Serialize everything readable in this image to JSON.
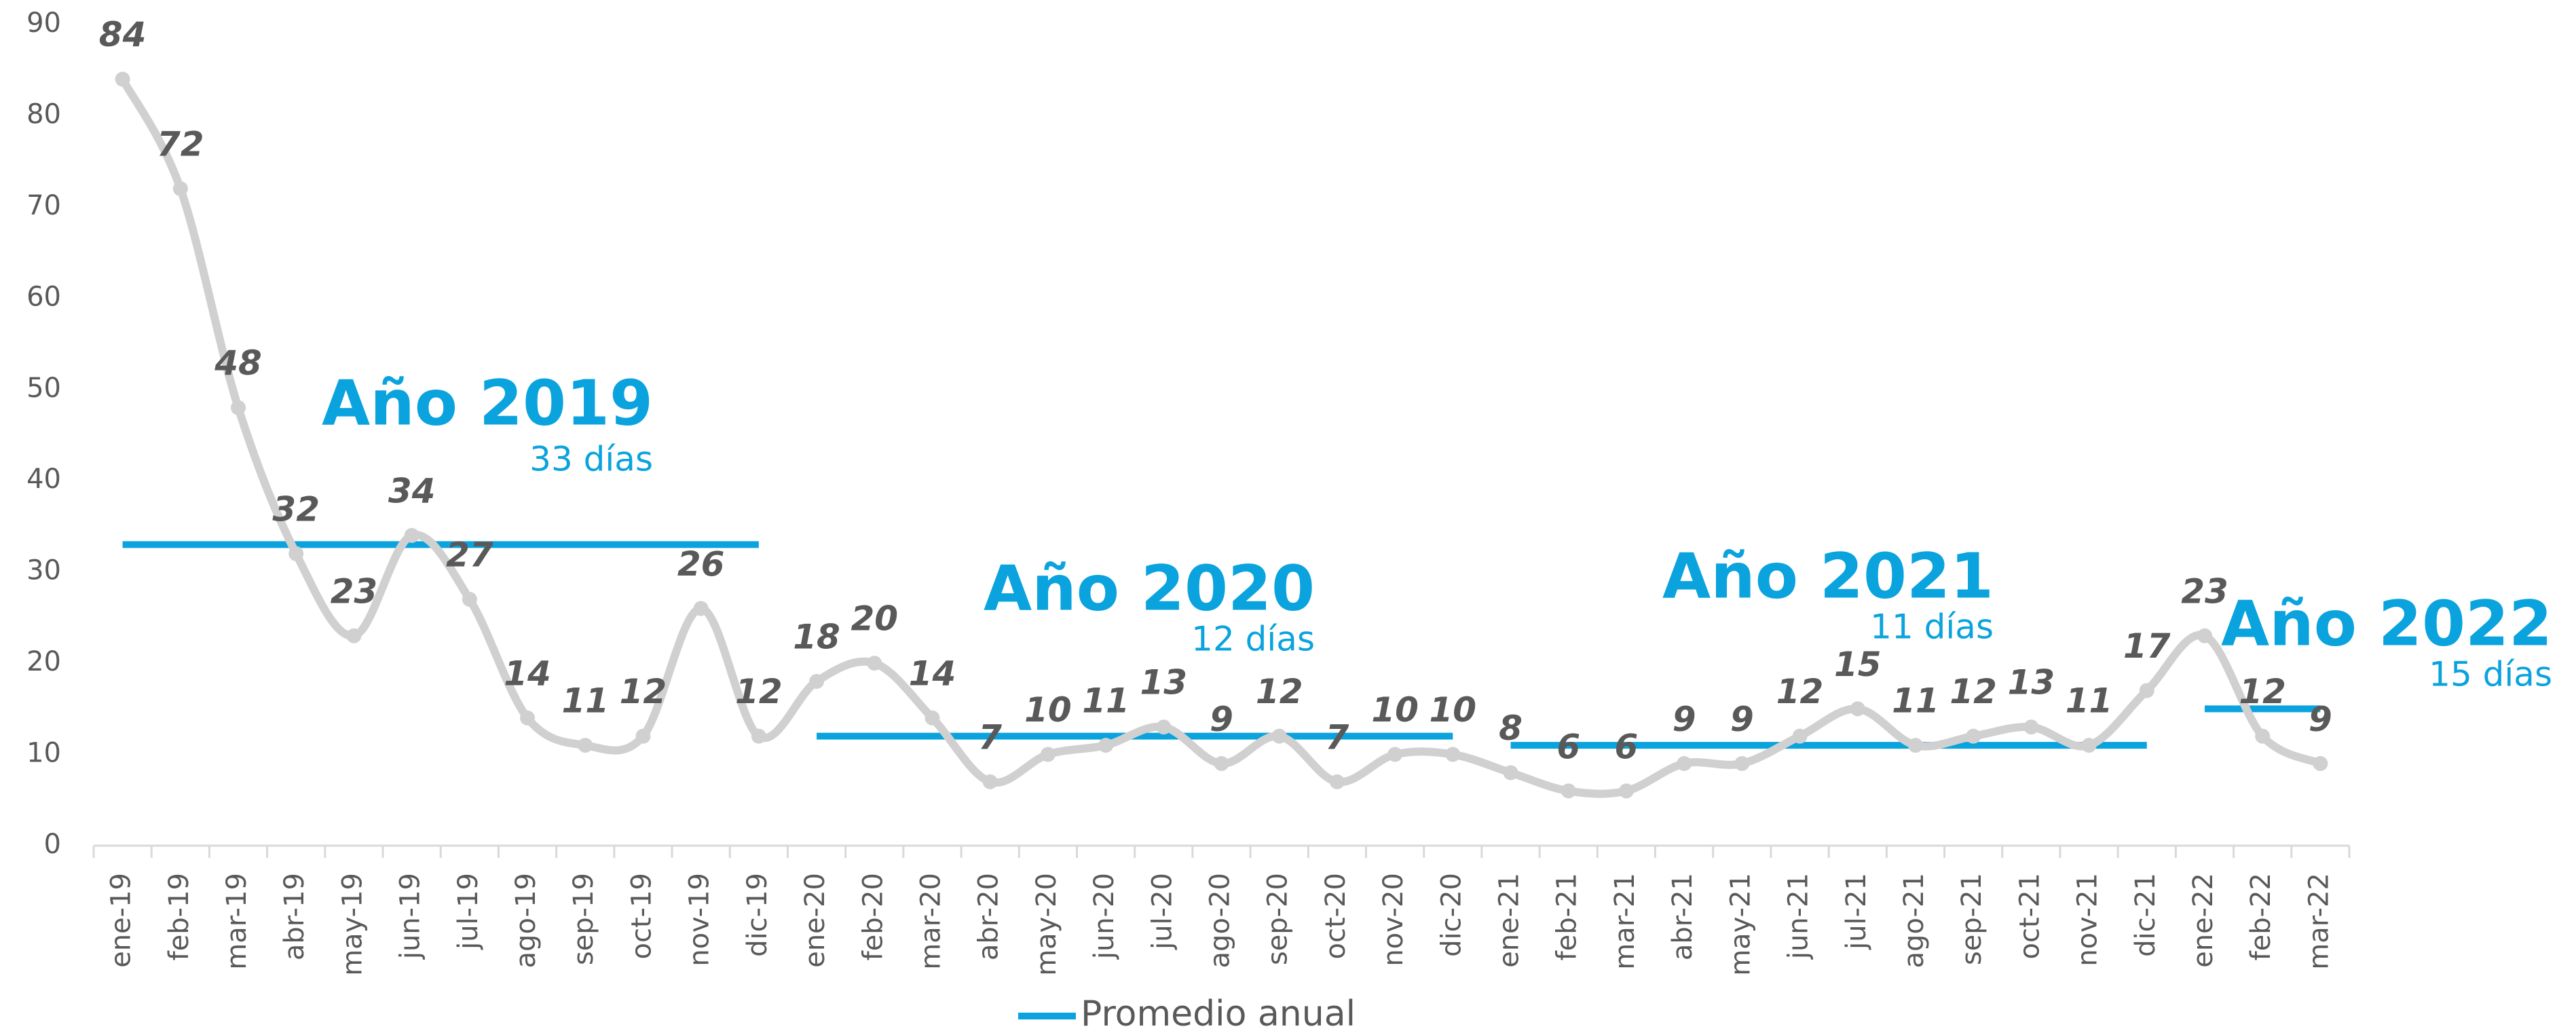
{
  "chart_data": {
    "type": "line",
    "categories": [
      "ene-19",
      "feb-19",
      "mar-19",
      "abr-19",
      "may-19",
      "jun-19",
      "jul-19",
      "ago-19",
      "sep-19",
      "oct-19",
      "nov-19",
      "dic-19",
      "ene-20",
      "feb-20",
      "mar-20",
      "abr-20",
      "may-20",
      "jun-20",
      "jul-20",
      "ago-20",
      "sep-20",
      "oct-20",
      "nov-20",
      "dic-20",
      "ene-21",
      "feb-21",
      "mar-21",
      "abr-21",
      "may-21",
      "jun-21",
      "jul-21",
      "ago-21",
      "sep-21",
      "oct-21",
      "nov-21",
      "dic-21",
      "ene-22",
      "feb-22",
      "mar-22"
    ],
    "series": [
      {
        "color": "#d0d0d0",
        "values": [
          84,
          72,
          48,
          32,
          23,
          34,
          27,
          14,
          11,
          12,
          26,
          12,
          18,
          20,
          14,
          7,
          10,
          11,
          13,
          9,
          12,
          7,
          10,
          10,
          8,
          6,
          6,
          9,
          9,
          12,
          15,
          11,
          12,
          13,
          11,
          17,
          23,
          12,
          9
        ]
      }
    ],
    "averages": {
      "name": "Promedio anual",
      "color": "#0aa3de",
      "items": [
        {
          "title": "Año 2019",
          "subtitle": "33 días",
          "value": 33,
          "from": "ene-19",
          "to": "dic-19"
        },
        {
          "title": "Año 2020",
          "subtitle": "12 días",
          "value": 12,
          "from": "ene-20",
          "to": "dic-20"
        },
        {
          "title": "Año 2021",
          "subtitle": "11 días",
          "value": 11,
          "from": "ene-21",
          "to": "dic-21"
        },
        {
          "title": "Año 2022",
          "subtitle": "15 días",
          "value": 15,
          "from": "ene-22",
          "to": "mar-22"
        }
      ]
    },
    "ylim": [
      0,
      90
    ],
    "yticks": [
      0,
      10,
      20,
      30,
      40,
      50,
      60,
      70,
      80,
      90
    ]
  }
}
